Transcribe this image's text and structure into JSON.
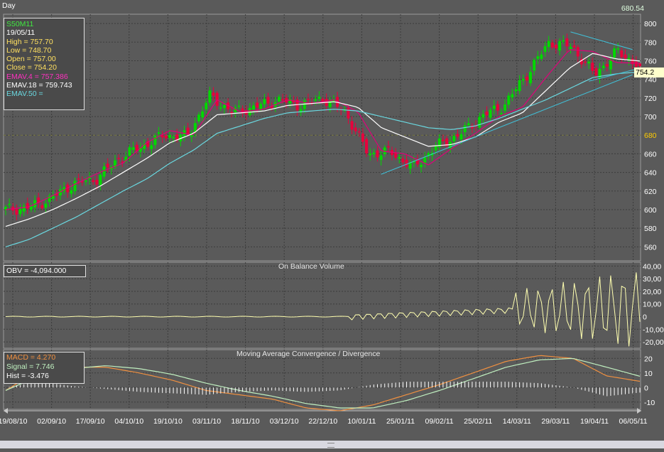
{
  "timeframe": "Day",
  "top_value": "680.54",
  "price_tag": "754.2",
  "info": {
    "symbol": "S50M11",
    "date": "19/05/11",
    "high": "High  = 757.70",
    "low": "Low   = 748.70",
    "open": "Open = 757.00",
    "close": "Close = 754.20",
    "emav4": "EMAV.4 = 757.386",
    "emav18": "EMAV.18 = 759.743",
    "emav50": "EMAV.50 ="
  },
  "obv_panel": {
    "title": "On Balance Volume",
    "label": "OBV = -4,094.000"
  },
  "macd_panel": {
    "title": "Moving Average Convergence / Divergence",
    "macd": "MACD = 4.270",
    "signal": "Signal = 7.746",
    "hist": "Hist = -3.476"
  },
  "colors": {
    "background": "#5a5a5a",
    "grid": "#3c3c3c",
    "up": "#00d800",
    "down": "#e8003c",
    "ema4": "#e0007a",
    "ema18": "#ffffff",
    "ema50": "#6ad8e0",
    "obv": "#ffffb0",
    "macd": "#f09040",
    "signal": "#c0f0c0",
    "hist": "#ffffff",
    "trendline": "#40c0d8",
    "text": "#ffffff"
  },
  "chart_data": [
    {
      "type": "candlestick",
      "title": "",
      "ylim": [
        545,
        810
      ],
      "y_ticks": [
        560,
        580,
        600,
        620,
        640,
        660,
        680,
        700,
        720,
        740,
        760,
        780,
        800
      ],
      "x_tick_labels": [
        "19/08/10",
        "02/09/10",
        "17/09/10",
        "04/10/10",
        "19/10/10",
        "03/11/10",
        "18/11/10",
        "03/12/10",
        "22/12/10",
        "10/01/11",
        "25/01/11",
        "09/02/11",
        "25/02/11",
        "14/03/11",
        "29/03/11",
        "19/04/11",
        "06/05/11"
      ],
      "key_closes": [
        600,
        602,
        612,
        628,
        633,
        655,
        668,
        680,
        678,
        722,
        705,
        710,
        718,
        712,
        720,
        705,
        660,
        662,
        645,
        668,
        680,
        700,
        712,
        745,
        780,
        775,
        745,
        770,
        754.2
      ],
      "last_bar": {
        "open": 757.0,
        "high": 757.7,
        "low": 748.7,
        "close": 754.2
      },
      "series": [
        {
          "name": "EMAV.4",
          "values": [
            600,
            603,
            615,
            628,
            640,
            650,
            672,
            685,
            680,
            718,
            705,
            708,
            718,
            714,
            718,
            705,
            663,
            660,
            648,
            666,
            682,
            700,
            710,
            742,
            772,
            770,
            758,
            757.4
          ]
        },
        {
          "name": "EMAV.18",
          "values": [
            582,
            590,
            600,
            612,
            625,
            640,
            655,
            672,
            682,
            702,
            704,
            706,
            712,
            714,
            716,
            710,
            688,
            678,
            668,
            670,
            678,
            694,
            704,
            728,
            752,
            768,
            762,
            759.7
          ]
        },
        {
          "name": "EMAV.50",
          "values": [
            560,
            568,
            580,
            592,
            606,
            620,
            633,
            650,
            664,
            682,
            690,
            698,
            704,
            706,
            708,
            706,
            700,
            694,
            688,
            686,
            690,
            698,
            708,
            718,
            730,
            742,
            746,
            748
          ]
        }
      ]
    },
    {
      "type": "line",
      "title": "On Balance Volume",
      "ylim": [
        -25000,
        43000
      ],
      "y_tick_labels": [
        "40,00",
        "30,00",
        "20,00",
        "10,00",
        "0",
        "-10,00",
        "-20,00"
      ],
      "last_value": -4094
    },
    {
      "type": "line",
      "title": "Moving Average Convergence / Divergence",
      "ylim": [
        -15,
        26
      ],
      "y_ticks": [
        20,
        10,
        0,
        -10
      ],
      "series": [
        {
          "name": "MACD",
          "values": [
            -2,
            12,
            14,
            14,
            10,
            5,
            -2,
            -5,
            -8,
            -14,
            -16,
            -12,
            -5,
            2,
            10,
            18,
            22,
            20,
            8,
            4.27
          ]
        },
        {
          "name": "Signal",
          "values": [
            -2,
            8,
            13,
            15,
            13,
            9,
            3,
            -2,
            -6,
            -11,
            -14,
            -14,
            -9,
            -2,
            6,
            14,
            19,
            20,
            14,
            7.746
          ]
        }
      ]
    }
  ]
}
